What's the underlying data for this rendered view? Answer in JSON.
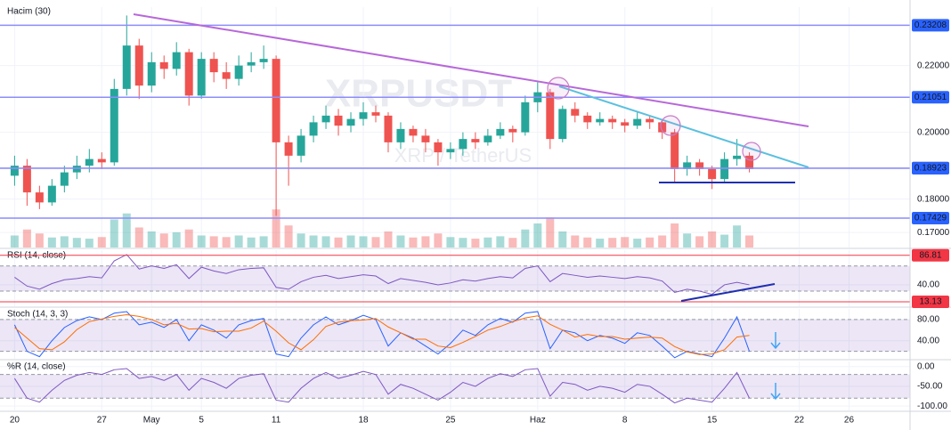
{
  "chart_data": [
    {
      "type": "candlestick",
      "title": "XRPUSDT",
      "subtitle": "XRP / TetherUS",
      "x": [
        0,
        1,
        2,
        3,
        4,
        5,
        6,
        7,
        8,
        9,
        10,
        11,
        12,
        13,
        14,
        15,
        16,
        17,
        18,
        19,
        20,
        21,
        22,
        23,
        24,
        25,
        26,
        27,
        28,
        29,
        30,
        31,
        32,
        33,
        34,
        35,
        36,
        37,
        38,
        39,
        40,
        41,
        42,
        43,
        44,
        45,
        46,
        47,
        48,
        49,
        50,
        51,
        52,
        53,
        54,
        55,
        56,
        57,
        58,
        59
      ],
      "open": [
        0.187,
        0.19,
        0.182,
        0.179,
        0.184,
        0.188,
        0.19,
        0.192,
        0.191,
        0.213,
        0.226,
        0.214,
        0.221,
        0.219,
        0.224,
        0.211,
        0.222,
        0.218,
        0.216,
        0.22,
        0.221,
        0.222,
        0.197,
        0.193,
        0.199,
        0.203,
        0.205,
        0.202,
        0.204,
        0.206,
        0.205,
        0.197,
        0.201,
        0.199,
        0.197,
        0.194,
        0.195,
        0.198,
        0.197,
        0.199,
        0.201,
        0.2,
        0.209,
        0.212,
        0.198,
        0.207,
        0.205,
        0.203,
        0.204,
        0.203,
        0.202,
        0.204,
        0.203,
        0.2,
        0.189,
        0.191,
        0.189,
        0.186,
        0.192,
        0.193
      ],
      "high": [
        0.193,
        0.192,
        0.184,
        0.186,
        0.19,
        0.193,
        0.195,
        0.194,
        0.216,
        0.235,
        0.228,
        0.224,
        0.223,
        0.227,
        0.225,
        0.224,
        0.224,
        0.221,
        0.223,
        0.224,
        0.226,
        0.223,
        0.199,
        0.201,
        0.205,
        0.208,
        0.207,
        0.206,
        0.209,
        0.208,
        0.206,
        0.203,
        0.202,
        0.201,
        0.198,
        0.197,
        0.2,
        0.2,
        0.201,
        0.203,
        0.202,
        0.211,
        0.215,
        0.213,
        0.208,
        0.209,
        0.206,
        0.206,
        0.205,
        0.204,
        0.206,
        0.205,
        0.204,
        0.201,
        0.193,
        0.192,
        0.19,
        0.194,
        0.198,
        0.194
      ],
      "low": [
        0.184,
        0.178,
        0.177,
        0.178,
        0.182,
        0.186,
        0.188,
        0.189,
        0.19,
        0.211,
        0.21,
        0.212,
        0.216,
        0.217,
        0.208,
        0.21,
        0.215,
        0.213,
        0.214,
        0.218,
        0.219,
        0.175,
        0.184,
        0.191,
        0.197,
        0.201,
        0.199,
        0.2,
        0.202,
        0.203,
        0.194,
        0.195,
        0.197,
        0.194,
        0.19,
        0.192,
        0.193,
        0.195,
        0.196,
        0.198,
        0.197,
        0.199,
        0.206,
        0.195,
        0.197,
        0.203,
        0.201,
        0.202,
        0.201,
        0.2,
        0.201,
        0.201,
        0.198,
        0.185,
        0.187,
        0.187,
        0.183,
        0.185,
        0.19,
        0.188
      ],
      "close": [
        0.19,
        0.182,
        0.179,
        0.184,
        0.188,
        0.19,
        0.192,
        0.191,
        0.213,
        0.226,
        0.214,
        0.221,
        0.219,
        0.224,
        0.211,
        0.222,
        0.218,
        0.216,
        0.22,
        0.221,
        0.222,
        0.197,
        0.193,
        0.199,
        0.203,
        0.205,
        0.202,
        0.204,
        0.206,
        0.205,
        0.197,
        0.201,
        0.199,
        0.197,
        0.194,
        0.195,
        0.198,
        0.197,
        0.199,
        0.201,
        0.2,
        0.209,
        0.212,
        0.198,
        0.207,
        0.205,
        0.203,
        0.204,
        0.203,
        0.202,
        0.204,
        0.203,
        0.2,
        0.189,
        0.191,
        0.189,
        0.186,
        0.192,
        0.193,
        0.189
      ],
      "up_color": "#26a69a",
      "down_color": "#ef5350",
      "volume": {
        "name": "Hacim (30)",
        "ylim": [
          0,
          600
        ],
        "values": [
          30,
          45,
          35,
          25,
          28,
          24,
          22,
          26,
          70,
          85,
          50,
          40,
          35,
          38,
          45,
          30,
          28,
          26,
          30,
          25,
          28,
          95,
          55,
          35,
          30,
          28,
          25,
          30,
          28,
          26,
          40,
          30,
          25,
          28,
          35,
          26,
          24,
          22,
          25,
          28,
          24,
          45,
          60,
          75,
          40,
          30,
          25,
          22,
          24,
          26,
          22,
          25,
          30,
          60,
          35,
          28,
          40,
          32,
          55,
          30
        ]
      },
      "levels": [
        0.23208,
        0.21051,
        0.18931,
        0.18923,
        0.17429
      ],
      "level_colors": [
        "#2962ff",
        "#2962ff",
        "#363a45",
        "#2962ff",
        "#2962ff"
      ],
      "xlim": [
        -0.6,
        71.9
      ],
      "xticks": [
        {
          "value": 0,
          "label": "20"
        },
        {
          "value": 7,
          "label": "27"
        },
        {
          "value": 11,
          "label": "May"
        },
        {
          "value": 15,
          "label": "5"
        },
        {
          "value": 21,
          "label": "11"
        },
        {
          "value": 28,
          "label": "18"
        },
        {
          "value": 35,
          "label": "25"
        },
        {
          "value": 42,
          "label": "Haz"
        },
        {
          "value": 49,
          "label": "8"
        },
        {
          "value": 56,
          "label": "15"
        },
        {
          "value": 63,
          "label": "22"
        },
        {
          "value": 67,
          "label": "26"
        }
      ],
      "ylim": [
        0.1655,
        0.2375
      ],
      "yticks": [
        {
          "value": 0.17,
          "label": "0.17000"
        },
        {
          "value": 0.18,
          "label": "0.18000"
        },
        {
          "value": 0.2,
          "label": "0.20000"
        },
        {
          "value": 0.22,
          "label": "0.22000"
        }
      ]
    },
    {
      "type": "line",
      "title": "RSI (14, close)",
      "color": "#7e57c2",
      "series": [
        {
          "color": "#7e57c2",
          "values": [
            52,
            38,
            33,
            42,
            48,
            50,
            53,
            51,
            78,
            88,
            65,
            70,
            66,
            72,
            50,
            68,
            62,
            58,
            64,
            66,
            67,
            36,
            33,
            45,
            52,
            55,
            50,
            53,
            56,
            54,
            42,
            50,
            47,
            44,
            40,
            43,
            48,
            46,
            50,
            53,
            51,
            66,
            70,
            45,
            58,
            55,
            52,
            54,
            52,
            50,
            53,
            51,
            46,
            28,
            33,
            30,
            25,
            40,
            44,
            40
          ]
        }
      ],
      "band": [
        30,
        70
      ],
      "levels": [
        86.81,
        13.13
      ],
      "level_colors": [
        "#f23645",
        "#f23645"
      ],
      "ylim": [
        6,
        95
      ],
      "yticks": [
        {
          "value": 40,
          "label": "40.00"
        }
      ]
    },
    {
      "type": "line",
      "title": "Stoch (14, 3, 3)",
      "series": [
        {
          "color": "#2962ff",
          "values": [
            70,
            20,
            10,
            40,
            65,
            78,
            85,
            80,
            92,
            95,
            70,
            75,
            65,
            80,
            40,
            70,
            60,
            45,
            70,
            78,
            82,
            15,
            10,
            45,
            70,
            85,
            70,
            78,
            88,
            80,
            30,
            55,
            45,
            30,
            15,
            35,
            60,
            50,
            70,
            82,
            75,
            92,
            95,
            25,
            60,
            55,
            40,
            50,
            45,
            35,
            55,
            50,
            30,
            8,
            20,
            15,
            10,
            45,
            85,
            20
          ]
        },
        {
          "color": "#ff6d00",
          "values": [
            65,
            45,
            25,
            23,
            38,
            61,
            76,
            81,
            86,
            89,
            86,
            80,
            70,
            73,
            62,
            63,
            57,
            58,
            58,
            64,
            77,
            58,
            36,
            23,
            42,
            67,
            75,
            78,
            79,
            82,
            66,
            55,
            43,
            43,
            30,
            27,
            37,
            48,
            60,
            67,
            76,
            83,
            87,
            71,
            60,
            47,
            52,
            48,
            48,
            43,
            45,
            47,
            45,
            29,
            19,
            14,
            15,
            23,
            47,
            50
          ]
        }
      ],
      "band": [
        20,
        80
      ],
      "ylim": [
        6,
        100
      ],
      "yticks": [
        {
          "value": 40,
          "label": "40.00"
        },
        {
          "value": 80,
          "label": "80.00"
        }
      ]
    },
    {
      "type": "line",
      "title": "%R (14, close)",
      "series": [
        {
          "color": "#7e57c2",
          "values": [
            -30,
            -80,
            -90,
            -60,
            -35,
            -22,
            -15,
            -20,
            -8,
            -5,
            -30,
            -25,
            -35,
            -20,
            -60,
            -30,
            -40,
            -55,
            -30,
            -22,
            -18,
            -85,
            -90,
            -55,
            -30,
            -15,
            -30,
            -22,
            -12,
            -20,
            -70,
            -45,
            -55,
            -70,
            -85,
            -65,
            -40,
            -50,
            -30,
            -18,
            -25,
            -8,
            -5,
            -75,
            -40,
            -45,
            -60,
            -50,
            -55,
            -65,
            -45,
            -50,
            -70,
            -92,
            -80,
            -85,
            -90,
            -55,
            -15,
            -80
          ]
        }
      ],
      "band": [
        -80,
        -20
      ],
      "ylim": [
        -111,
        13
      ],
      "yticks": [
        {
          "value": -100,
          "label": "-100.00"
        },
        {
          "value": -50,
          "label": "-50.00"
        },
        {
          "value": 0,
          "label": "0.00"
        }
      ]
    }
  ]
}
